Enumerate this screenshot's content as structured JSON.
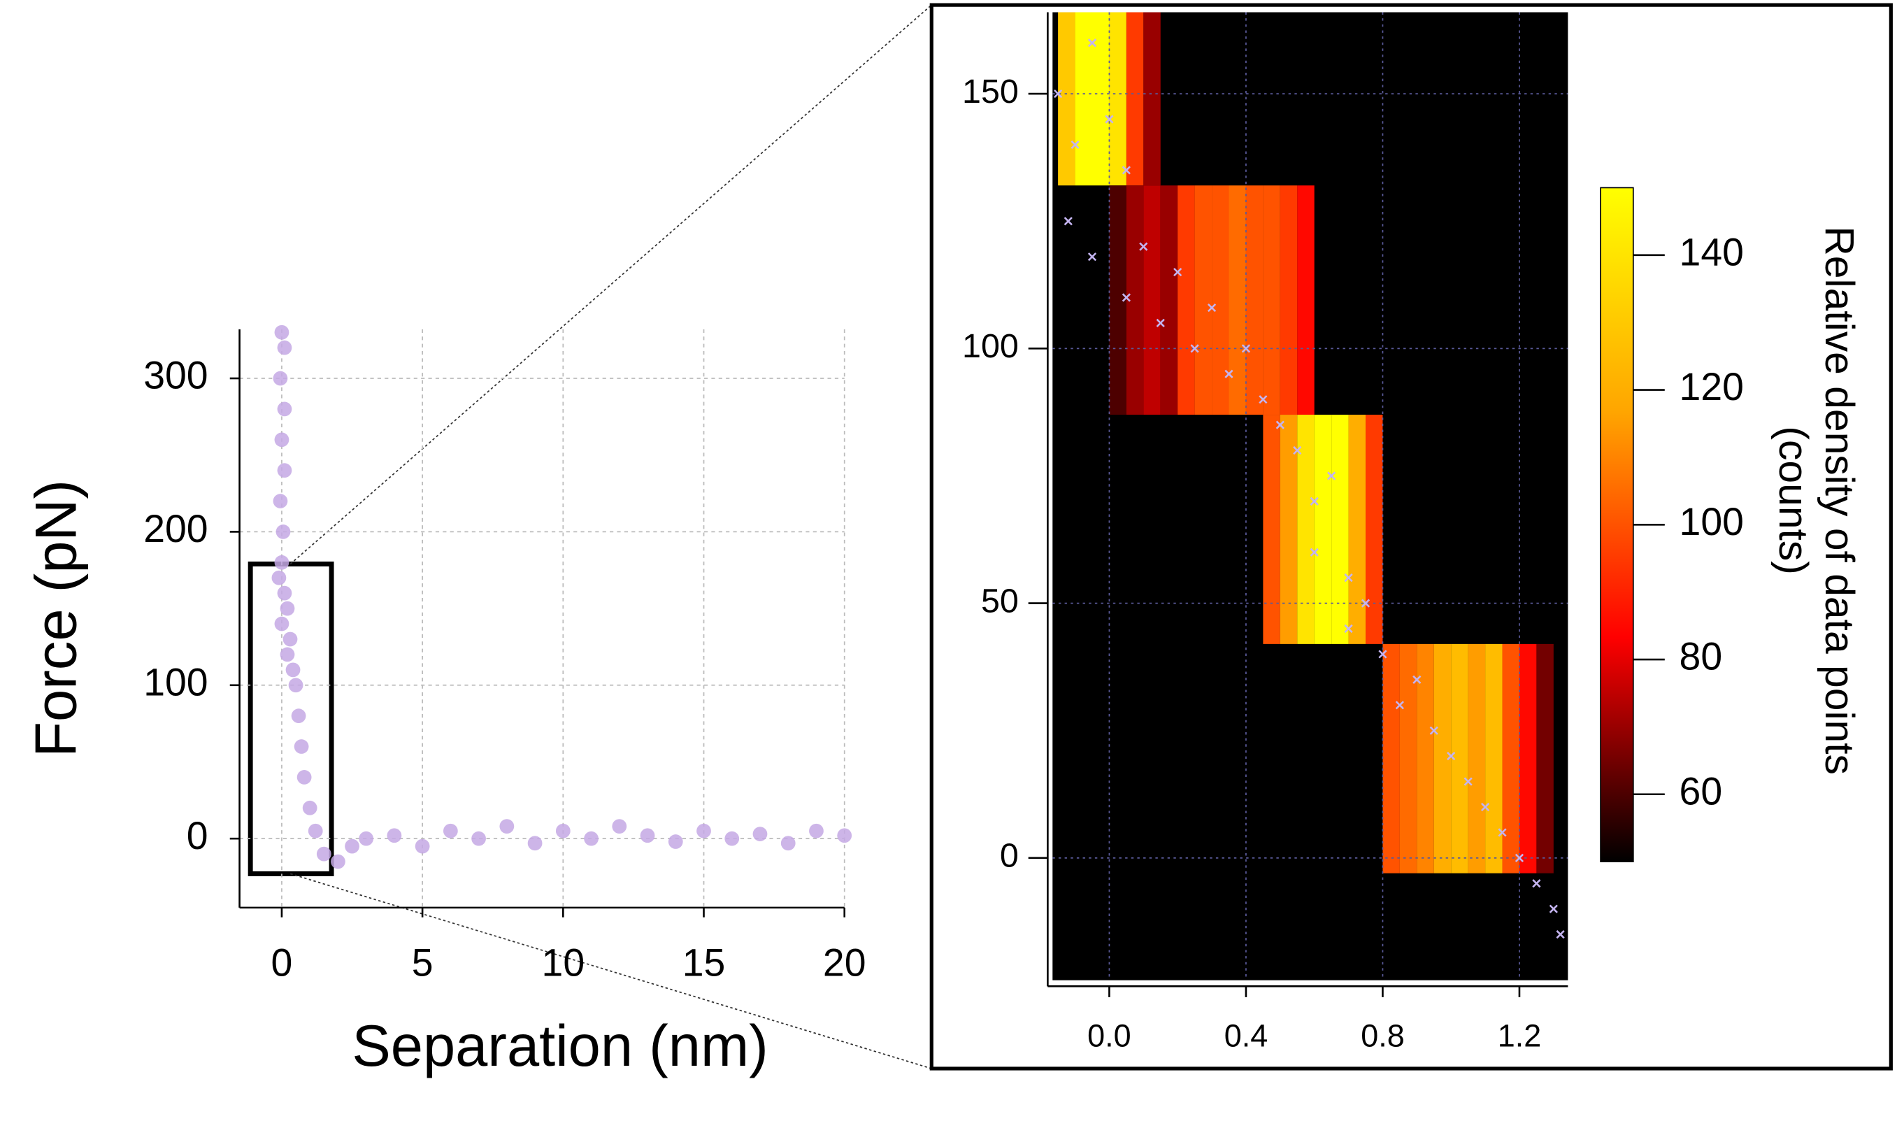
{
  "chart_data": [
    {
      "type": "scatter",
      "x_label": "Separation (nm)",
      "y_label": "Force (pN)",
      "xlim": [
        -1.5,
        20
      ],
      "ylim": [
        -45,
        332
      ],
      "xticks": [
        0,
        5,
        10,
        15,
        20
      ],
      "yticks": [
        0,
        100,
        200,
        300
      ],
      "grid": true,
      "color": "#c4a8e4",
      "x": [
        0,
        0.1,
        -0.05,
        0.1,
        0,
        0.1,
        -0.05,
        0.05,
        0,
        -0.1,
        0.1,
        0.2,
        0,
        0.3,
        0.2,
        0.4,
        0.5,
        0.6,
        0.7,
        0.8,
        1.0,
        1.2,
        1.5,
        2,
        2.5,
        3,
        4,
        5,
        6,
        7,
        8,
        9,
        10,
        11,
        12,
        13,
        14,
        15,
        16,
        17,
        18,
        19,
        20
      ],
      "y": [
        330,
        320,
        300,
        280,
        260,
        240,
        220,
        200,
        180,
        170,
        160,
        150,
        140,
        130,
        120,
        110,
        100,
        80,
        60,
        40,
        20,
        5,
        -10,
        -15,
        -5,
        0,
        2,
        -5,
        5,
        0,
        8,
        -3,
        5,
        0,
        8,
        2,
        -2,
        5,
        0,
        3,
        -3,
        5,
        2
      ]
    },
    {
      "type": "heatmap",
      "xlim": [
        -0.166,
        1.342
      ],
      "ylim": [
        -24,
        166
      ],
      "xticks": [
        {
          "value": 0,
          "label": "0.0"
        },
        0.4,
        0.8,
        1.2
      ],
      "yticks": [
        0,
        50,
        100,
        150
      ],
      "grid": true,
      "colormap": [
        "#000000",
        "#ff0000",
        "#ffa500",
        "#ffff00"
      ],
      "clim": [
        50,
        150
      ],
      "cticks": [
        60,
        80,
        100,
        120,
        140
      ],
      "colorbar_label": "Relative density of data points",
      "colorbar_unit": "(counts)",
      "cells": [
        {
          "x0": -0.15,
          "x1": -0.1,
          "y0": 132,
          "y1": 166,
          "value": 130
        },
        {
          "x0": -0.1,
          "x1": -0.05,
          "y0": 132,
          "y1": 166,
          "value": 150
        },
        {
          "x0": -0.05,
          "x1": 0,
          "y0": 132,
          "y1": 166,
          "value": 150
        },
        {
          "x0": 0,
          "x1": 0.05,
          "y0": 132,
          "y1": 166,
          "value": 140
        },
        {
          "x0": 0.05,
          "x1": 0.1,
          "y0": 132,
          "y1": 166,
          "value": 95
        },
        {
          "x0": 0.1,
          "x1": 0.15,
          "y0": 132,
          "y1": 166,
          "value": 70
        },
        {
          "x0": 0,
          "x1": 0.05,
          "y0": 87,
          "y1": 132,
          "value": 60
        },
        {
          "x0": 0.05,
          "x1": 0.1,
          "y0": 87,
          "y1": 132,
          "value": 70
        },
        {
          "x0": 0.1,
          "x1": 0.15,
          "y0": 87,
          "y1": 132,
          "value": 75
        },
        {
          "x0": 0.15,
          "x1": 0.2,
          "y0": 87,
          "y1": 132,
          "value": 70
        },
        {
          "x0": 0.2,
          "x1": 0.25,
          "y0": 87,
          "y1": 132,
          "value": 95
        },
        {
          "x0": 0.25,
          "x1": 0.3,
          "y0": 87,
          "y1": 132,
          "value": 100
        },
        {
          "x0": 0.3,
          "x1": 0.35,
          "y0": 87,
          "y1": 132,
          "value": 100
        },
        {
          "x0": 0.35,
          "x1": 0.4,
          "y0": 87,
          "y1": 132,
          "value": 105
        },
        {
          "x0": 0.4,
          "x1": 0.45,
          "y0": 87,
          "y1": 132,
          "value": 100
        },
        {
          "x0": 0.45,
          "x1": 0.5,
          "y0": 87,
          "y1": 132,
          "value": 100
        },
        {
          "x0": 0.5,
          "x1": 0.55,
          "y0": 87,
          "y1": 132,
          "value": 95
        },
        {
          "x0": 0.55,
          "x1": 0.6,
          "y0": 87,
          "y1": 132,
          "value": 85
        },
        {
          "x0": 0.45,
          "x1": 0.5,
          "y0": 42,
          "y1": 87,
          "value": 100
        },
        {
          "x0": 0.5,
          "x1": 0.55,
          "y0": 42,
          "y1": 87,
          "value": 115
        },
        {
          "x0": 0.55,
          "x1": 0.6,
          "y0": 42,
          "y1": 87,
          "value": 140
        },
        {
          "x0": 0.6,
          "x1": 0.65,
          "y0": 42,
          "y1": 87,
          "value": 150
        },
        {
          "x0": 0.65,
          "x1": 0.7,
          "y0": 42,
          "y1": 87,
          "value": 150
        },
        {
          "x0": 0.7,
          "x1": 0.75,
          "y0": 42,
          "y1": 87,
          "value": 120
        },
        {
          "x0": 0.75,
          "x1": 0.8,
          "y0": 42,
          "y1": 87,
          "value": 95
        },
        {
          "x0": 0.8,
          "x1": 0.85,
          "y0": -3,
          "y1": 42,
          "value": 100
        },
        {
          "x0": 0.85,
          "x1": 0.9,
          "y0": -3,
          "y1": 42,
          "value": 105
        },
        {
          "x0": 0.9,
          "x1": 0.95,
          "y0": -3,
          "y1": 42,
          "value": 110
        },
        {
          "x0": 0.95,
          "x1": 1.0,
          "y0": -3,
          "y1": 42,
          "value": 120
        },
        {
          "x0": 1.0,
          "x1": 1.05,
          "y0": -3,
          "y1": 42,
          "value": 125
        },
        {
          "x0": 1.05,
          "x1": 1.1,
          "y0": -3,
          "y1": 42,
          "value": 115
        },
        {
          "x0": 1.1,
          "x1": 1.15,
          "y0": -3,
          "y1": 42,
          "value": 125
        },
        {
          "x0": 1.15,
          "x1": 1.2,
          "y0": -3,
          "y1": 42,
          "value": 100
        },
        {
          "x0": 1.2,
          "x1": 1.25,
          "y0": -3,
          "y1": 42,
          "value": 85
        },
        {
          "x0": 1.25,
          "x1": 1.3,
          "y0": -3,
          "y1": 42,
          "value": 65
        }
      ],
      "point_color": "#c4b4f0",
      "x": [
        -0.15,
        -0.1,
        -0.05,
        0,
        0.05,
        -0.12,
        -0.05,
        0.05,
        0.1,
        0.15,
        0.2,
        0.25,
        0.3,
        0.35,
        0.4,
        0.45,
        0.5,
        0.55,
        0.6,
        0.65,
        0.6,
        0.7,
        0.75,
        0.7,
        0.8,
        0.85,
        0.9,
        0.95,
        1.0,
        1.05,
        1.1,
        1.15,
        1.2,
        1.25,
        1.3,
        1.32
      ],
      "y": [
        150,
        140,
        160,
        145,
        135,
        125,
        118,
        110,
        120,
        105,
        115,
        100,
        108,
        95,
        100,
        90,
        85,
        80,
        70,
        75,
        60,
        55,
        50,
        45,
        40,
        30,
        35,
        25,
        20,
        15,
        10,
        5,
        0,
        -5,
        -10,
        -15
      ]
    }
  ]
}
